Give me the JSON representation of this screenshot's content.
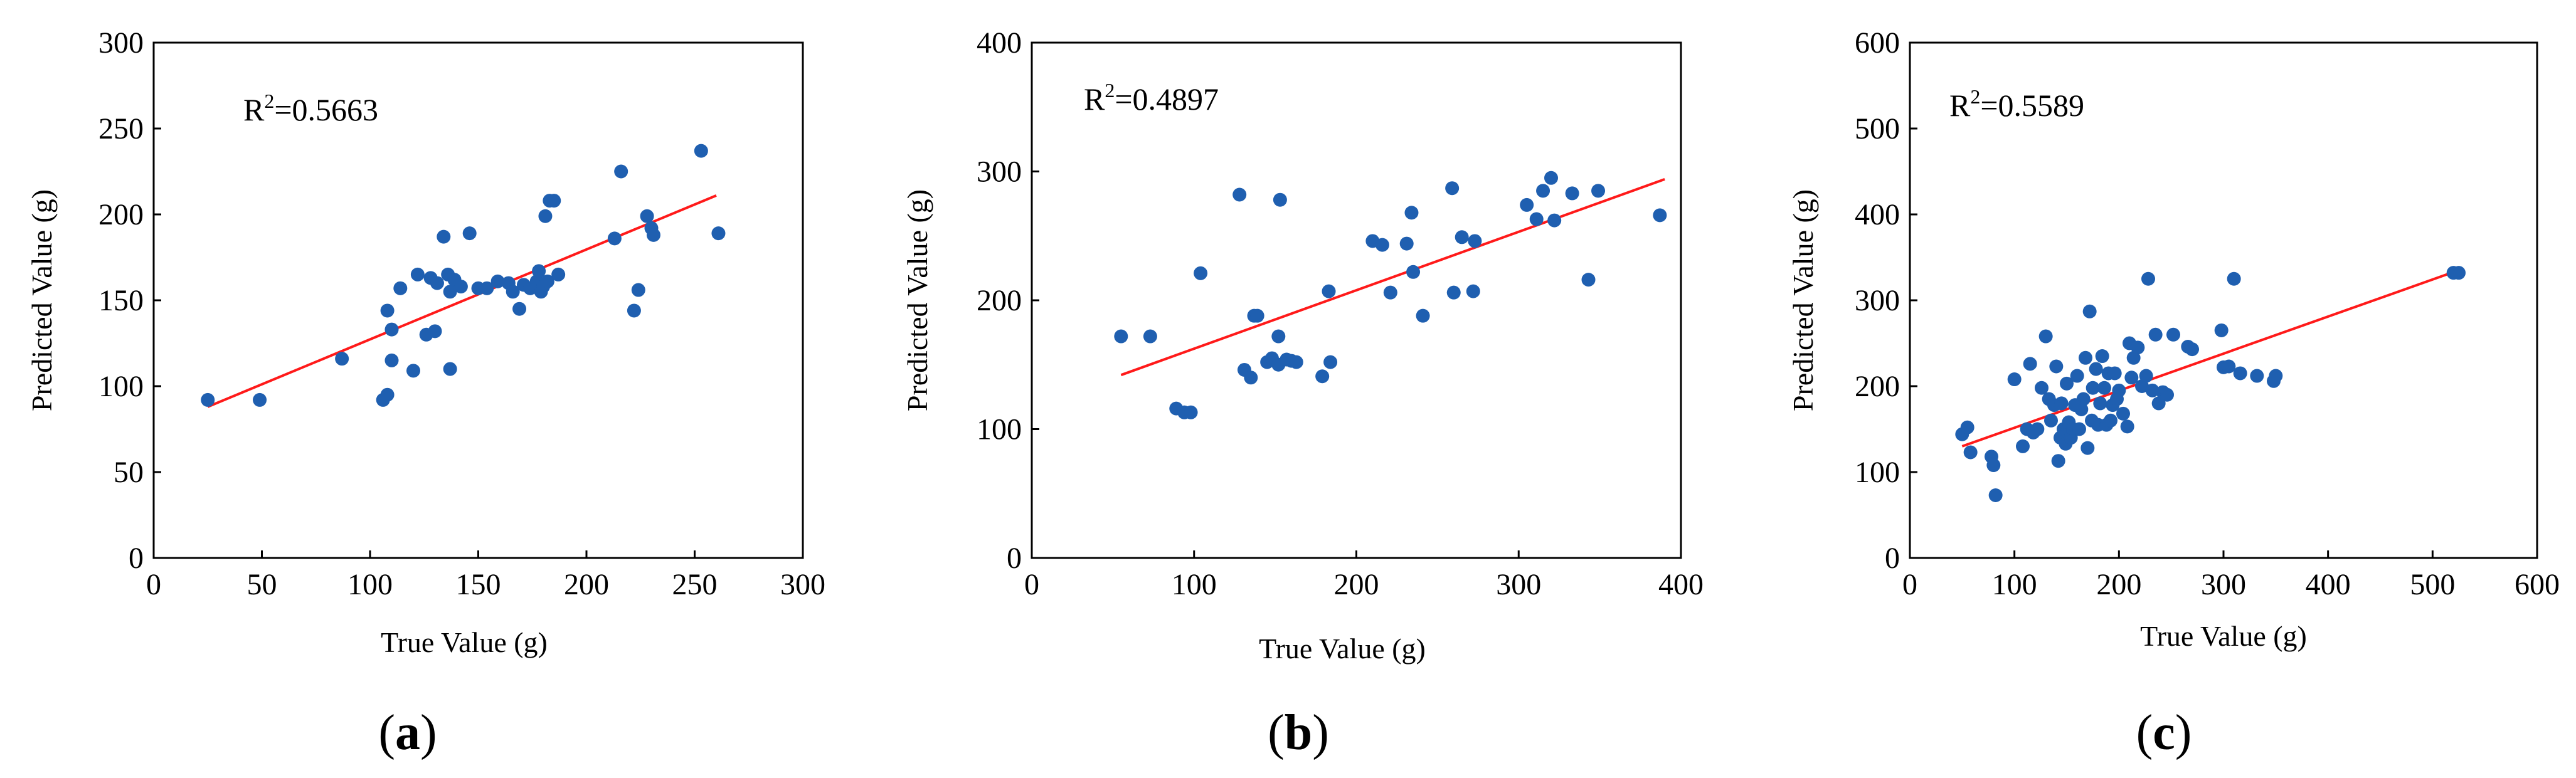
{
  "chart_data": [
    {
      "type": "scatter",
      "panel_label": "a",
      "title": "",
      "xlabel": "True Value (g)",
      "ylabel": "Predicted Value (g)",
      "xlim": [
        0,
        300
      ],
      "ylim": [
        0,
        300
      ],
      "xticks": [
        0,
        50,
        100,
        150,
        200,
        250,
        300
      ],
      "yticks": [
        0,
        50,
        100,
        150,
        200,
        250,
        300
      ],
      "annotation": {
        "prefix": "R",
        "sup": "2",
        "value": "=0.5663"
      },
      "fit_line": {
        "x": [
          25,
          260
        ],
        "y": [
          88,
          211
        ],
        "color": "#ff1a1a"
      },
      "point_color": "#1f5fb0",
      "points": [
        [
          25,
          92
        ],
        [
          49,
          92
        ],
        [
          87,
          116
        ],
        [
          106,
          92
        ],
        [
          108,
          95
        ],
        [
          108,
          144
        ],
        [
          110,
          115
        ],
        [
          110,
          133
        ],
        [
          114,
          157
        ],
        [
          120,
          109
        ],
        [
          122,
          165
        ],
        [
          126,
          130
        ],
        [
          128,
          163
        ],
        [
          130,
          132
        ],
        [
          131,
          160
        ],
        [
          134,
          187
        ],
        [
          136,
          165
        ],
        [
          137,
          110
        ],
        [
          137,
          155
        ],
        [
          139,
          162
        ],
        [
          142,
          158
        ],
        [
          146,
          189
        ],
        [
          150,
          157
        ],
        [
          154,
          157
        ],
        [
          159,
          161
        ],
        [
          164,
          160
        ],
        [
          166,
          155
        ],
        [
          169,
          145
        ],
        [
          171,
          159
        ],
        [
          174,
          157
        ],
        [
          177,
          161
        ],
        [
          178,
          167
        ],
        [
          179,
          155
        ],
        [
          180,
          158
        ],
        [
          181,
          199
        ],
        [
          182,
          161
        ],
        [
          183,
          208
        ],
        [
          185,
          208
        ],
        [
          187,
          165
        ],
        [
          213,
          186
        ],
        [
          216,
          225
        ],
        [
          222,
          144
        ],
        [
          224,
          156
        ],
        [
          228,
          199
        ],
        [
          230,
          192
        ],
        [
          231,
          188
        ],
        [
          253,
          237
        ],
        [
          261,
          189
        ]
      ]
    },
    {
      "type": "scatter",
      "panel_label": "b",
      "title": "",
      "xlabel": "True Value (g)",
      "ylabel": "Predicted Value (g)",
      "xlim": [
        0,
        400
      ],
      "ylim": [
        0,
        400
      ],
      "xticks": [
        0,
        100,
        200,
        300,
        400
      ],
      "yticks": [
        0,
        100,
        200,
        300,
        400
      ],
      "annotation": {
        "prefix": "R",
        "sup": "2",
        "value": "=0.4897"
      },
      "fit_line": {
        "x": [
          55,
          390
        ],
        "y": [
          142,
          294
        ],
        "color": "#ff1a1a"
      },
      "point_color": "#1f5fb0",
      "points": [
        [
          55,
          172
        ],
        [
          73,
          172
        ],
        [
          89,
          116
        ],
        [
          94,
          113
        ],
        [
          98,
          113
        ],
        [
          104,
          221
        ],
        [
          128,
          282
        ],
        [
          131,
          146
        ],
        [
          135,
          140
        ],
        [
          137,
          188
        ],
        [
          139,
          188
        ],
        [
          145,
          152
        ],
        [
          148,
          155
        ],
        [
          152,
          150
        ],
        [
          152,
          172
        ],
        [
          153,
          278
        ],
        [
          157,
          154
        ],
        [
          160,
          153
        ],
        [
          163,
          152
        ],
        [
          179,
          141
        ],
        [
          183,
          207
        ],
        [
          184,
          152
        ],
        [
          210,
          246
        ],
        [
          216,
          243
        ],
        [
          221,
          206
        ],
        [
          231,
          244
        ],
        [
          234,
          268
        ],
        [
          235,
          222
        ],
        [
          241,
          188
        ],
        [
          259,
          287
        ],
        [
          260,
          206
        ],
        [
          265,
          249
        ],
        [
          272,
          207
        ],
        [
          273,
          246
        ],
        [
          305,
          274
        ],
        [
          311,
          263
        ],
        [
          315,
          285
        ],
        [
          320,
          295
        ],
        [
          322,
          262
        ],
        [
          333,
          283
        ],
        [
          343,
          216
        ],
        [
          349,
          285
        ],
        [
          387,
          266
        ]
      ]
    },
    {
      "type": "scatter",
      "panel_label": "c",
      "title": "",
      "xlabel": "True Value (g)",
      "ylabel": "Predicted Value (g)",
      "xlim": [
        0,
        600
      ],
      "ylim": [
        0,
        600
      ],
      "xticks": [
        0,
        100,
        200,
        300,
        400,
        500,
        600
      ],
      "yticks": [
        0,
        100,
        200,
        300,
        400,
        500,
        600
      ],
      "annotation": {
        "prefix": "R",
        "sup": "2",
        "value": "=0.5589"
      },
      "fit_line": {
        "x": [
          50,
          525
        ],
        "y": [
          130,
          335
        ],
        "color": "#ff1a1a"
      },
      "point_color": "#1f5fb0",
      "points": [
        [
          50,
          144
        ],
        [
          55,
          152
        ],
        [
          58,
          123
        ],
        [
          78,
          118
        ],
        [
          80,
          108
        ],
        [
          82,
          73
        ],
        [
          100,
          208
        ],
        [
          108,
          130
        ],
        [
          112,
          150
        ],
        [
          115,
          226
        ],
        [
          118,
          146
        ],
        [
          122,
          150
        ],
        [
          126,
          198
        ],
        [
          130,
          258
        ],
        [
          133,
          185
        ],
        [
          135,
          160
        ],
        [
          138,
          178
        ],
        [
          140,
          223
        ],
        [
          142,
          113
        ],
        [
          144,
          140
        ],
        [
          145,
          180
        ],
        [
          147,
          150
        ],
        [
          149,
          133
        ],
        [
          150,
          203
        ],
        [
          152,
          158
        ],
        [
          154,
          140
        ],
        [
          156,
          150
        ],
        [
          158,
          178
        ],
        [
          160,
          212
        ],
        [
          162,
          150
        ],
        [
          164,
          173
        ],
        [
          166,
          185
        ],
        [
          168,
          233
        ],
        [
          170,
          128
        ],
        [
          172,
          287
        ],
        [
          174,
          160
        ],
        [
          175,
          198
        ],
        [
          178,
          220
        ],
        [
          180,
          155
        ],
        [
          182,
          180
        ],
        [
          184,
          235
        ],
        [
          186,
          198
        ],
        [
          188,
          155
        ],
        [
          190,
          215
        ],
        [
          192,
          160
        ],
        [
          194,
          178
        ],
        [
          196,
          215
        ],
        [
          198,
          185
        ],
        [
          200,
          195
        ],
        [
          204,
          168
        ],
        [
          208,
          153
        ],
        [
          210,
          250
        ],
        [
          212,
          210
        ],
        [
          214,
          233
        ],
        [
          218,
          245
        ],
        [
          222,
          200
        ],
        [
          226,
          212
        ],
        [
          228,
          325
        ],
        [
          232,
          195
        ],
        [
          235,
          260
        ],
        [
          238,
          180
        ],
        [
          242,
          193
        ],
        [
          246,
          190
        ],
        [
          252,
          260
        ],
        [
          266,
          246
        ],
        [
          270,
          243
        ],
        [
          298,
          265
        ],
        [
          300,
          222
        ],
        [
          305,
          223
        ],
        [
          310,
          325
        ],
        [
          316,
          215
        ],
        [
          332,
          212
        ],
        [
          348,
          206
        ],
        [
          350,
          212
        ],
        [
          520,
          332
        ],
        [
          525,
          332
        ]
      ]
    }
  ]
}
